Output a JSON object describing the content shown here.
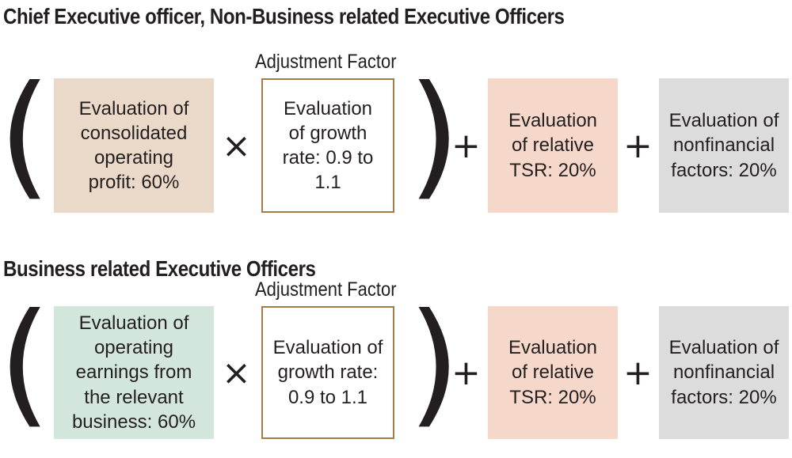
{
  "section1": {
    "title": "Chief Executive officer, Non-Business related Executive Officers",
    "adjustment_label": "Adjustment Factor",
    "box_main": "Evaluation of\nconsolidated\noperating\nprofit: 60%",
    "box_adjust": "Evaluation\nof growth\nrate: 0.9 to\n1.1",
    "box_tsr": "Evaluation\nof relative\nTSR: 20%",
    "box_nonfinancial": "Evaluation of\nnonfinancial\nfactors: 20%"
  },
  "section2": {
    "title": "Business related Executive Officers",
    "adjustment_label": "Adjustment Factor",
    "box_main": "Evaluation of\noperating\nearnings from\nthe relevant\nbusiness: 60%",
    "box_adjust": "Evaluation of\ngrowth rate:\n0.9 to 1.1",
    "box_tsr": "Evaluation\nof relative\nTSR: 20%",
    "box_nonfinancial": "Evaluation of\nnonfinancial\nfactors: 20%"
  },
  "symbols": {
    "open_paren": "(",
    "close_paren": ")",
    "times": "×",
    "plus": "+"
  },
  "colors": {
    "consolidated_box": "#ead8c8",
    "business_box": "#d3e6dc",
    "adjust_border": "#a67c45",
    "tsr_box": "#f6d8cb",
    "nonfinancial_box": "#dcdcdc"
  }
}
